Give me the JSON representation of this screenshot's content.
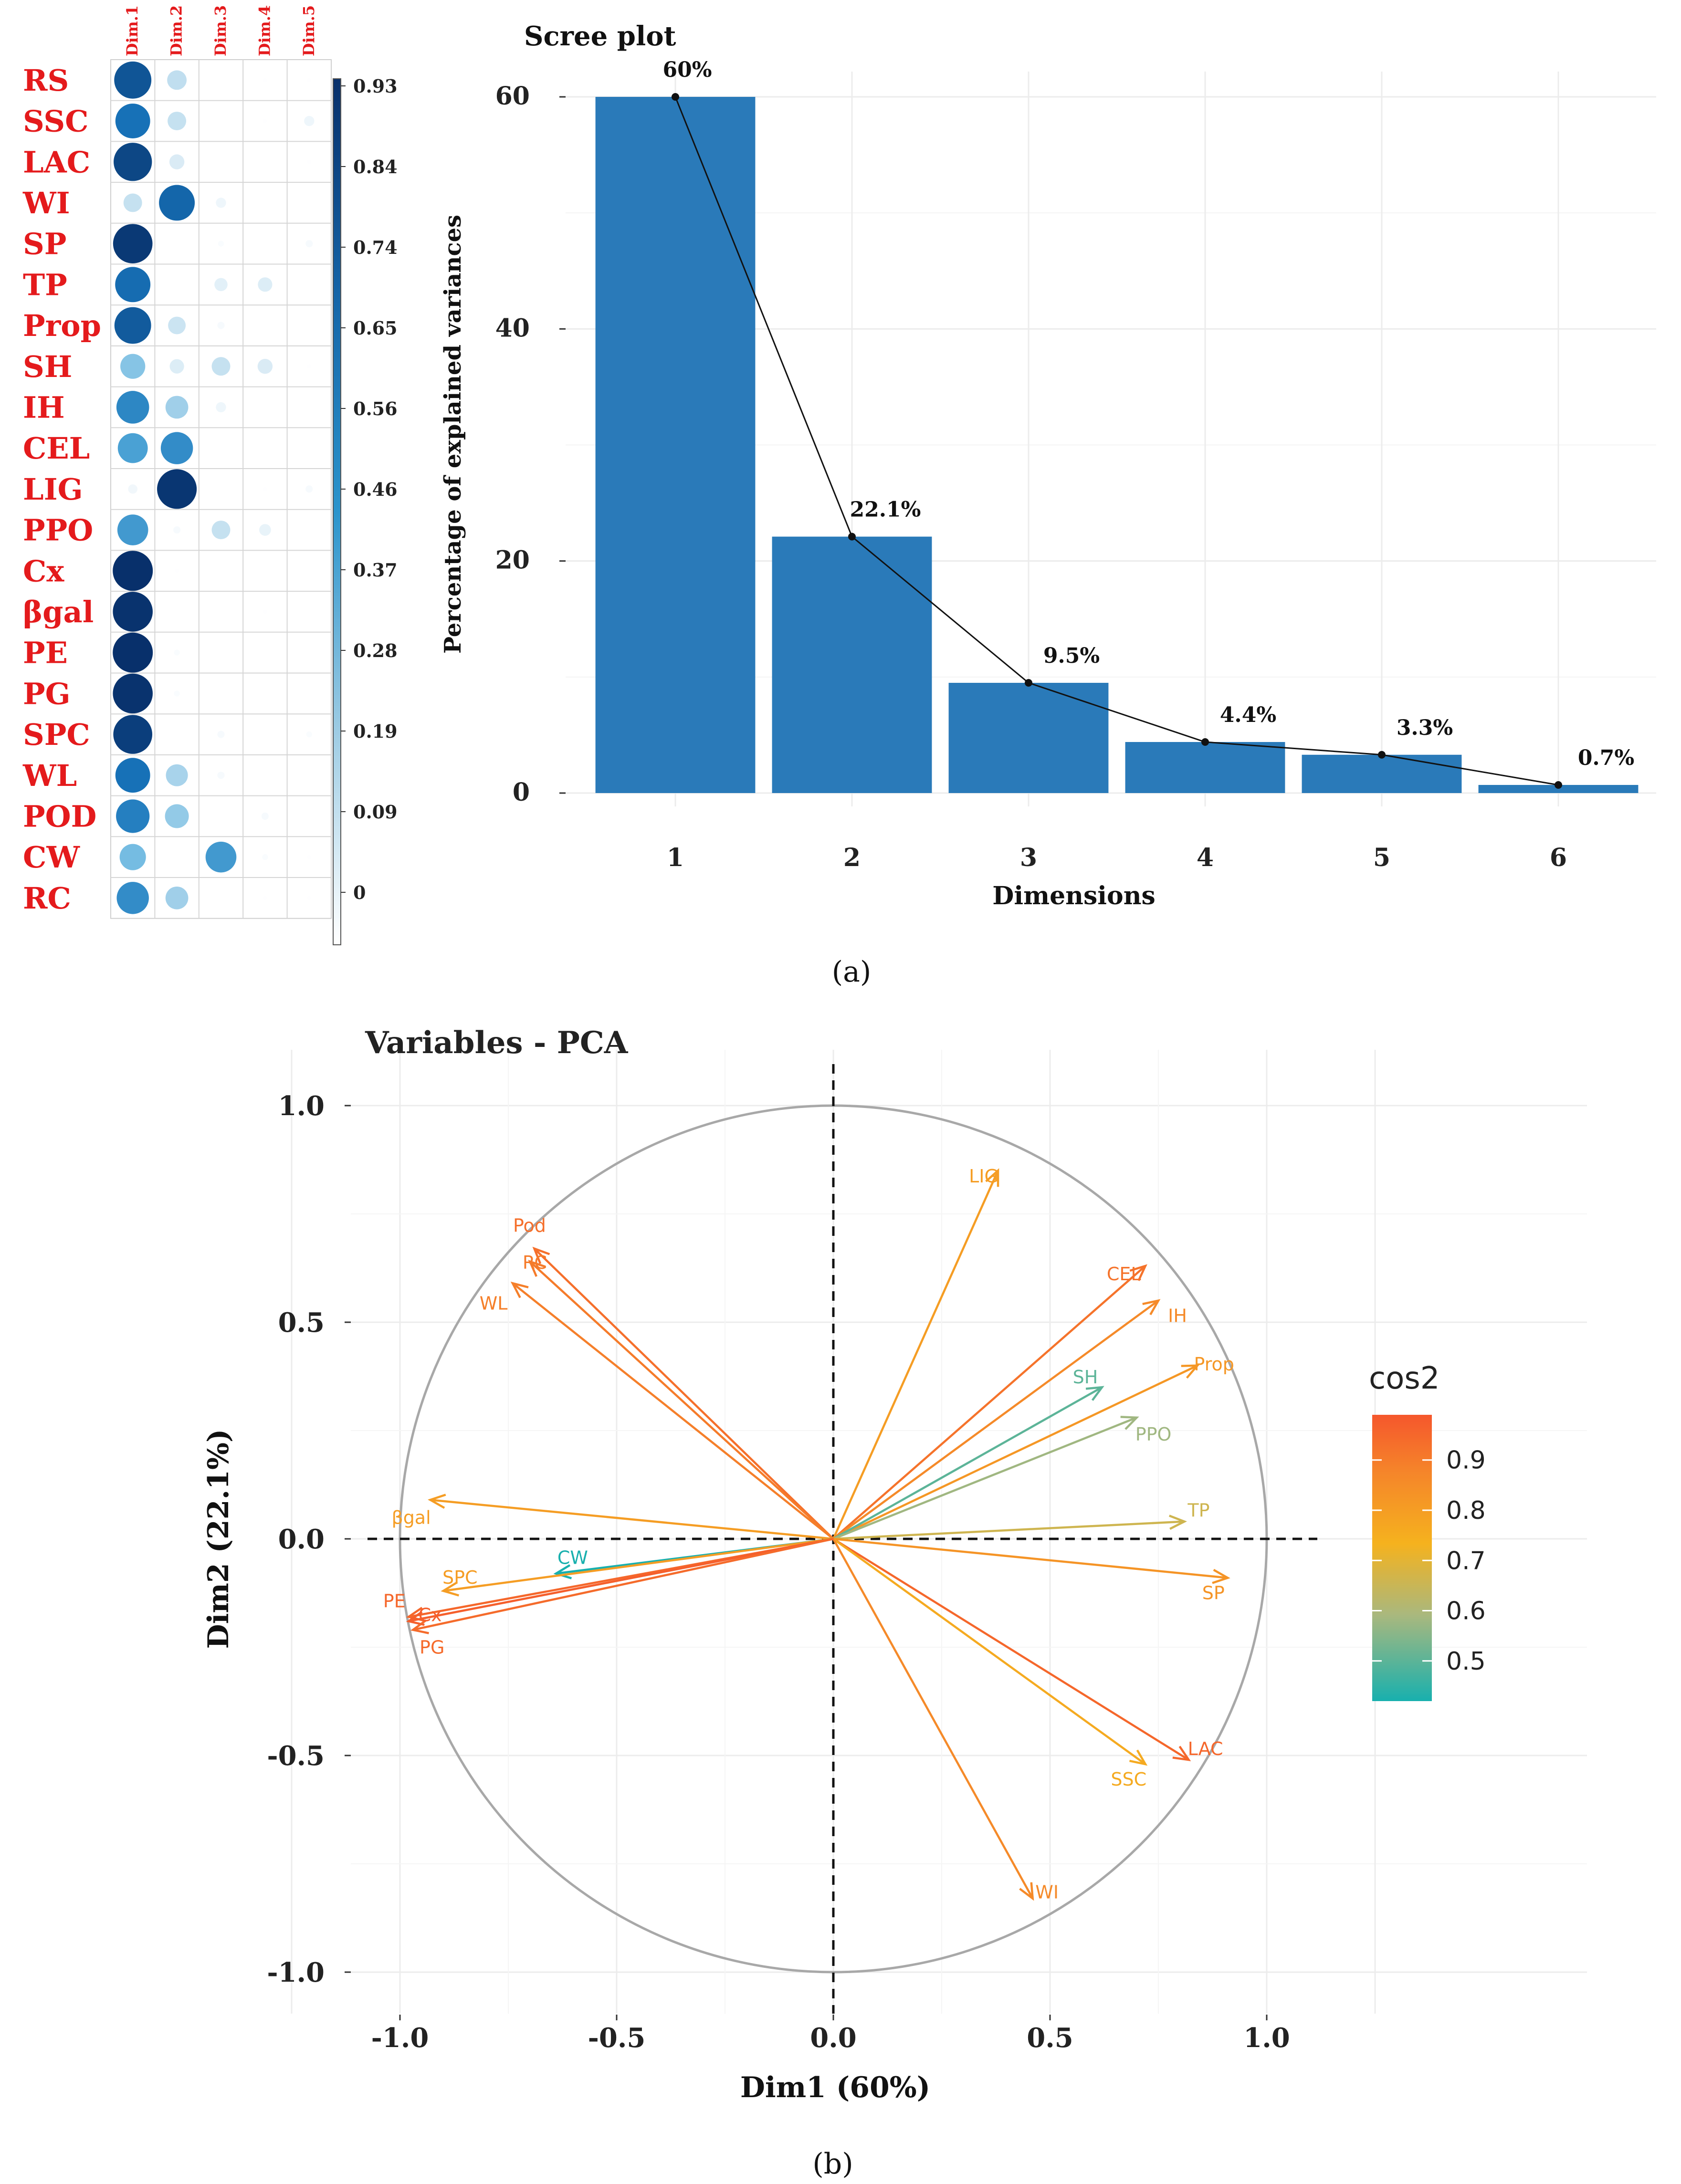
{
  "chart_data": [
    {
      "type": "heatmap",
      "title": "",
      "rows": [
        "RS",
        "SSC",
        "LAC",
        "WI",
        "SP",
        "TP",
        "Prop",
        "SH",
        "IH",
        "CEL",
        "LIG",
        "PPO",
        "Cx",
        "βgal",
        "PE",
        "PG",
        "SPC",
        "WL",
        "POD",
        "CW",
        "RC"
      ],
      "columns": [
        "Dim.1",
        "Dim.2",
        "Dim.3",
        "Dim.4",
        "Dim.5"
      ],
      "values": [
        [
          0.8,
          0.22,
          0.0,
          0.01,
          0.01
        ],
        [
          0.7,
          0.2,
          0.0,
          0.01,
          0.06
        ],
        [
          0.85,
          0.13,
          0.0,
          0.0,
          0.01
        ],
        [
          0.2,
          0.74,
          0.06,
          0.0,
          0.0
        ],
        [
          0.9,
          0.0,
          0.02,
          0.0,
          0.03
        ],
        [
          0.72,
          0.0,
          0.1,
          0.12,
          0.0
        ],
        [
          0.78,
          0.18,
          0.03,
          0.0,
          0.0
        ],
        [
          0.36,
          0.12,
          0.2,
          0.13,
          0.01
        ],
        [
          0.62,
          0.3,
          0.06,
          0.0,
          0.0
        ],
        [
          0.52,
          0.6,
          0.0,
          0.0,
          0.0
        ],
        [
          0.05,
          0.91,
          0.0,
          0.01,
          0.03
        ],
        [
          0.55,
          0.03,
          0.2,
          0.08,
          0.0
        ],
        [
          0.93,
          0.01,
          0.0,
          0.0,
          0.0
        ],
        [
          0.92,
          0.0,
          0.0,
          0.01,
          0.0
        ],
        [
          0.93,
          0.02,
          0.0,
          0.0,
          0.0
        ],
        [
          0.92,
          0.02,
          0.0,
          0.0,
          0.0
        ],
        [
          0.88,
          0.0,
          0.03,
          0.0,
          0.02
        ],
        [
          0.7,
          0.28,
          0.03,
          0.0,
          0.0
        ],
        [
          0.65,
          0.33,
          0.0,
          0.03,
          0.0
        ],
        [
          0.4,
          0.0,
          0.55,
          0.02,
          0.01
        ],
        [
          0.6,
          0.3,
          0.0,
          0.01,
          0.01
        ]
      ],
      "colorbar_ticks": [
        "0.93",
        "0.84",
        "0.74",
        "0.65",
        "0.56",
        "0.46",
        "0.37",
        "0.28",
        "0.19",
        "0.09",
        "0"
      ],
      "color_range": [
        0,
        0.93
      ]
    },
    {
      "type": "bar",
      "title": "Scree plot",
      "categories": [
        "1",
        "2",
        "3",
        "4",
        "5",
        "6"
      ],
      "values": [
        60,
        22.1,
        9.5,
        4.4,
        3.3,
        0.7
      ],
      "value_labels": [
        "60%",
        "22.1%",
        "9.5%",
        "4.4%",
        "3.3%",
        "0.7%"
      ],
      "xlabel": "Dimensions",
      "ylabel": "Percentage of explained variances",
      "yticks": [
        "0",
        "20",
        "40",
        "60"
      ],
      "ylim": [
        0,
        63
      ],
      "line_overlay": true
    },
    {
      "type": "scatter",
      "title": "Variables - PCA",
      "xlabel": "Dim1 (60%)",
      "ylabel": "Dim2 (22.1%)",
      "xlim": [
        -1.1,
        1.1
      ],
      "ylim": [
        -1.1,
        1.1
      ],
      "xticks": [
        "-1.0",
        "-0.5",
        "0.0",
        "0.5",
        "1.0"
      ],
      "yticks": [
        "-1.0",
        "-0.5",
        "0.0",
        "0.5",
        "1.0"
      ],
      "legend_title": "cos2",
      "legend_ticks": [
        "0.9",
        "0.8",
        "0.7",
        "0.6",
        "0.5"
      ],
      "legend_range": [
        0.42,
        0.99
      ],
      "vectors": [
        {
          "name": "LIG",
          "x": 0.38,
          "y": 0.85,
          "cos2": 0.8
        },
        {
          "name": "CEL",
          "x": 0.72,
          "y": 0.63,
          "cos2": 0.92
        },
        {
          "name": "IH",
          "x": 0.75,
          "y": 0.55,
          "cos2": 0.86
        },
        {
          "name": "Prop",
          "x": 0.84,
          "y": 0.4,
          "cos2": 0.82
        },
        {
          "name": "SH",
          "x": 0.62,
          "y": 0.35,
          "cos2": 0.5
        },
        {
          "name": "PPO",
          "x": 0.7,
          "y": 0.28,
          "cos2": 0.58
        },
        {
          "name": "TP",
          "x": 0.81,
          "y": 0.04,
          "cos2": 0.66
        },
        {
          "name": "SP",
          "x": 0.91,
          "y": -0.09,
          "cos2": 0.83
        },
        {
          "name": "LAC",
          "x": 0.82,
          "y": -0.51,
          "cos2": 0.95
        },
        {
          "name": "SSC",
          "x": 0.72,
          "y": -0.52,
          "cos2": 0.76
        },
        {
          "name": "WI",
          "x": 0.46,
          "y": -0.83,
          "cos2": 0.86
        },
        {
          "name": "Pod",
          "x": -0.69,
          "y": 0.67,
          "cos2": 0.93
        },
        {
          "name": "RC",
          "x": -0.7,
          "y": 0.64,
          "cos2": 0.9
        },
        {
          "name": "WL",
          "x": -0.74,
          "y": 0.59,
          "cos2": 0.89
        },
        {
          "name": "βgal",
          "x": -0.93,
          "y": 0.09,
          "cos2": 0.8
        },
        {
          "name": "CW",
          "x": -0.64,
          "y": -0.08,
          "cos2": 0.42
        },
        {
          "name": "SPC",
          "x": -0.9,
          "y": -0.12,
          "cos2": 0.8
        },
        {
          "name": "PE",
          "x": -0.98,
          "y": -0.18,
          "cos2": 0.95
        },
        {
          "name": "Cx",
          "x": -0.98,
          "y": -0.19,
          "cos2": 0.97
        },
        {
          "name": "PG",
          "x": -0.97,
          "y": -0.21,
          "cos2": 0.94
        }
      ]
    }
  ],
  "captions": {
    "a": "(a)",
    "b": "(b)"
  }
}
